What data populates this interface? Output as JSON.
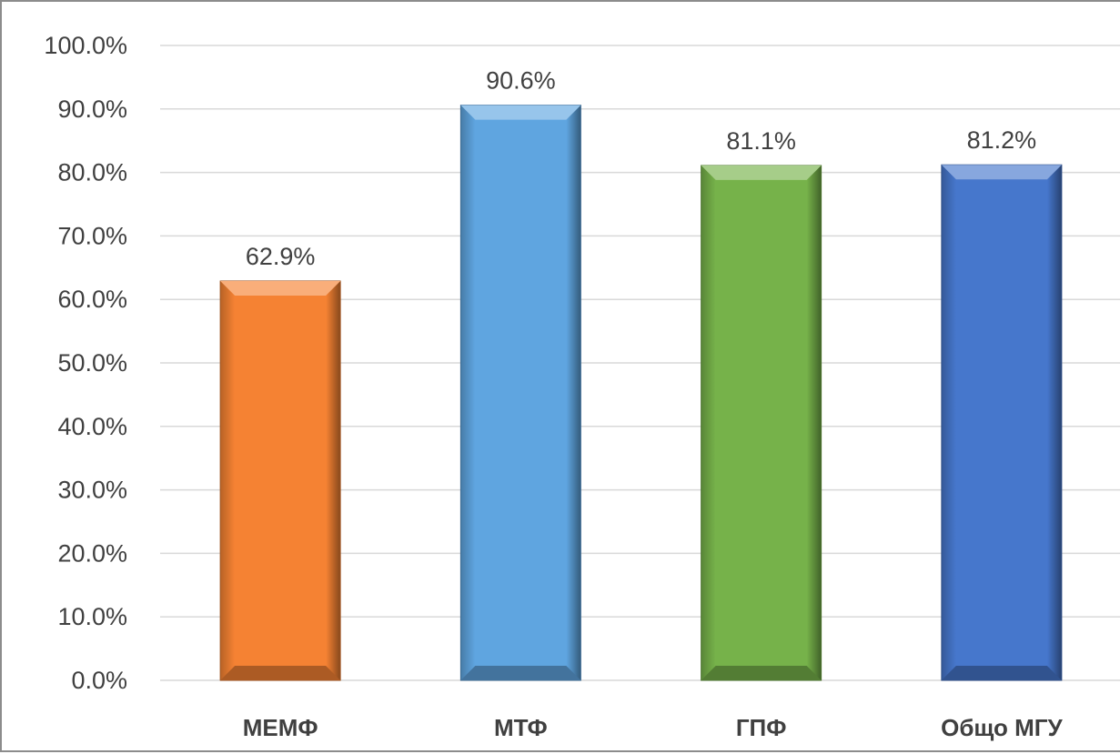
{
  "chart_data": {
    "type": "bar",
    "title": "",
    "xlabel": "",
    "ylabel": "",
    "categories": [
      "МЕМФ",
      "МТФ",
      "ГПФ",
      "Общо МГУ"
    ],
    "values": [
      62.9,
      90.6,
      81.1,
      81.2
    ],
    "value_labels": [
      "62.9%",
      "90.6%",
      "81.1%",
      "81.2%"
    ],
    "ylim": [
      0,
      100
    ],
    "yticks": [
      0,
      10,
      20,
      30,
      40,
      50,
      60,
      70,
      80,
      90,
      100
    ],
    "ytick_labels": [
      "0.0%",
      "10.0%",
      "20.0%",
      "30.0%",
      "40.0%",
      "50.0%",
      "60.0%",
      "70.0%",
      "80.0%",
      "90.0%",
      "100.0%"
    ],
    "bar_colors": [
      "#f58233",
      "#5fa5e0",
      "#76b24a",
      "#4677cc"
    ],
    "grid": true,
    "legend": "none"
  }
}
